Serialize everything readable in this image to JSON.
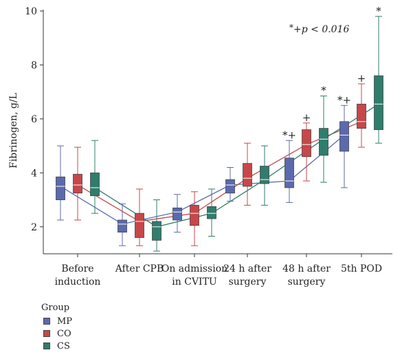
{
  "chart_data": {
    "type": "box",
    "ylabel": "Fibrinogen, g/L",
    "ylim": [
      1,
      10
    ],
    "yticks": [
      2,
      4,
      6,
      8,
      10
    ],
    "categories": [
      [
        "Before",
        "induction"
      ],
      [
        "After CPB"
      ],
      [
        "On admission",
        "in CVITU"
      ],
      [
        "24 h after",
        "surgery"
      ],
      [
        "48 h after",
        "surgery"
      ],
      [
        "5th POD"
      ]
    ],
    "annotation": {
      "star": "*",
      "text": "+p < 0.016"
    },
    "legend_title": "Group",
    "series": [
      {
        "name": "MP",
        "color": "#5b6aad",
        "medians": [
          3.5,
          2.1,
          2.55,
          3.55,
          3.7,
          5.4
        ],
        "boxes": [
          {
            "q1": 3.0,
            "q3": 3.85,
            "min": 2.25,
            "max": 5.0
          },
          {
            "q1": 1.8,
            "q3": 2.25,
            "min": 1.3,
            "max": 2.85
          },
          {
            "q1": 2.25,
            "q3": 2.7,
            "min": 1.8,
            "max": 3.2
          },
          {
            "q1": 3.25,
            "q3": 3.75,
            "min": 2.95,
            "max": 4.2
          },
          {
            "q1": 3.45,
            "q3": 4.55,
            "min": 2.9,
            "max": 5.2
          },
          {
            "q1": 4.8,
            "q3": 5.9,
            "min": 3.45,
            "max": 6.5
          }
        ],
        "markers": [
          "",
          "",
          "",
          "",
          "*+",
          "*+"
        ]
      },
      {
        "name": "CO",
        "color": "#c7474a",
        "medians": [
          3.55,
          2.2,
          2.5,
          3.8,
          5.05,
          5.9
        ],
        "boxes": [
          {
            "q1": 3.25,
            "q3": 3.95,
            "min": 2.25,
            "max": 4.95
          },
          {
            "q1": 1.6,
            "q3": 2.5,
            "min": 1.3,
            "max": 3.4
          },
          {
            "q1": 2.05,
            "q3": 2.8,
            "min": 1.3,
            "max": 3.3
          },
          {
            "q1": 3.5,
            "q3": 4.35,
            "min": 2.8,
            "max": 5.1
          },
          {
            "q1": 4.6,
            "q3": 5.6,
            "min": 3.7,
            "max": 5.85
          },
          {
            "q1": 5.65,
            "q3": 6.55,
            "min": 4.95,
            "max": 7.3
          }
        ],
        "markers": [
          "",
          "",
          "",
          "",
          "+",
          "+"
        ]
      },
      {
        "name": "CS",
        "color": "#2f7d6d",
        "medians": [
          3.45,
          2.0,
          2.5,
          3.75,
          5.25,
          6.55
        ],
        "boxes": [
          {
            "q1": 3.15,
            "q3": 4.0,
            "min": 2.5,
            "max": 5.2
          },
          {
            "q1": 1.5,
            "q3": 2.2,
            "min": 1.1,
            "max": 3.0
          },
          {
            "q1": 2.3,
            "q3": 2.75,
            "min": 1.65,
            "max": 3.4
          },
          {
            "q1": 3.6,
            "q3": 4.25,
            "min": 2.8,
            "max": 5.0
          },
          {
            "q1": 4.65,
            "q3": 5.65,
            "min": 3.65,
            "max": 6.85
          },
          {
            "q1": 5.6,
            "q3": 7.6,
            "min": 5.1,
            "max": 9.8
          }
        ],
        "markers": [
          "",
          "",
          "",
          "",
          "*",
          "*"
        ]
      }
    ]
  }
}
